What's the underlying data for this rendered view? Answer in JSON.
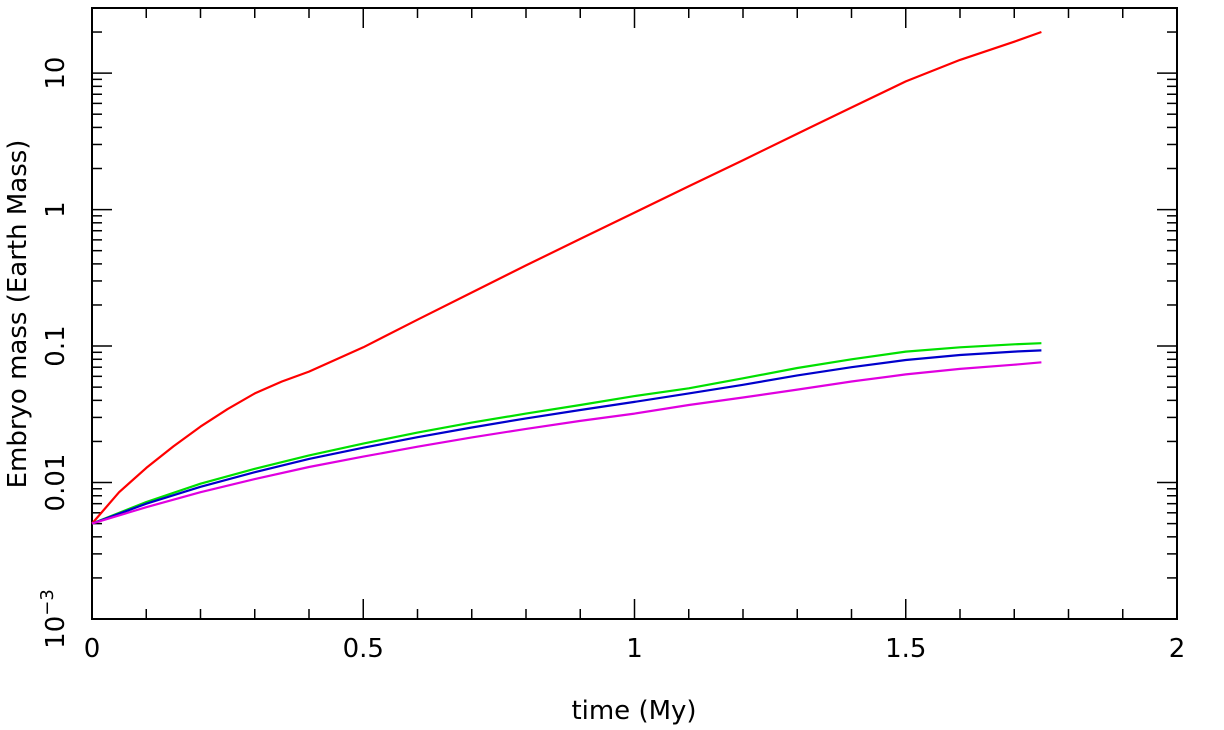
{
  "chart_data": {
    "type": "line",
    "title": "",
    "xlabel": "time (My)",
    "ylabel": "Embryo mass (Earth Mass)",
    "xlim": [
      0,
      2
    ],
    "ylim": [
      0.001,
      30
    ],
    "yscale": "log",
    "grid": false,
    "legend": "none",
    "x_ticks": [
      {
        "value": 0,
        "label": "0"
      },
      {
        "value": 0.5,
        "label": "0.5"
      },
      {
        "value": 1,
        "label": "1"
      },
      {
        "value": 1.5,
        "label": "1.5"
      },
      {
        "value": 2,
        "label": "2"
      }
    ],
    "y_ticks": [
      {
        "value": 0.001,
        "base": "10",
        "exp": "−3"
      },
      {
        "value": 0.01,
        "label": "0.01"
      },
      {
        "value": 0.1,
        "label": "0.1"
      },
      {
        "value": 1,
        "label": "1"
      },
      {
        "value": 10,
        "label": "10"
      }
    ],
    "series": [
      {
        "color": "#ff0000",
        "x": [
          0,
          0.05,
          0.1,
          0.15,
          0.2,
          0.25,
          0.3,
          0.35,
          0.4,
          0.5,
          0.6,
          0.7,
          0.8,
          0.9,
          1.0,
          1.1,
          1.2,
          1.3,
          1.4,
          1.5,
          1.6,
          1.7,
          1.75
        ],
        "y": [
          0.005,
          0.0085,
          0.0128,
          0.0184,
          0.0257,
          0.0345,
          0.045,
          0.055,
          0.065,
          0.098,
          0.156,
          0.247,
          0.39,
          0.61,
          0.95,
          1.48,
          2.3,
          3.6,
          5.6,
          8.7,
          12.5,
          17.0,
          20.0
        ]
      },
      {
        "color": "#00e000",
        "x": [
          0,
          0.1,
          0.2,
          0.3,
          0.4,
          0.5,
          0.6,
          0.7,
          0.8,
          0.9,
          1.0,
          1.1,
          1.2,
          1.3,
          1.4,
          1.5,
          1.6,
          1.7,
          1.75
        ],
        "y": [
          0.005,
          0.0072,
          0.0098,
          0.0126,
          0.0158,
          0.0193,
          0.0232,
          0.0275,
          0.032,
          0.037,
          0.043,
          0.049,
          0.058,
          0.069,
          0.08,
          0.091,
          0.098,
          0.103,
          0.105
        ]
      },
      {
        "color": "#0000cc",
        "x": [
          0,
          0.1,
          0.2,
          0.3,
          0.4,
          0.5,
          0.6,
          0.7,
          0.8,
          0.9,
          1.0,
          1.1,
          1.2,
          1.3,
          1.4,
          1.5,
          1.6,
          1.7,
          1.75
        ],
        "y": [
          0.005,
          0.007,
          0.0093,
          0.0119,
          0.0149,
          0.018,
          0.0215,
          0.0253,
          0.0295,
          0.034,
          0.039,
          0.045,
          0.052,
          0.061,
          0.07,
          0.079,
          0.086,
          0.091,
          0.093
        ]
      },
      {
        "color": "#e000e0",
        "x": [
          0,
          0.1,
          0.2,
          0.3,
          0.4,
          0.5,
          0.6,
          0.7,
          0.8,
          0.9,
          1.0,
          1.1,
          1.2,
          1.3,
          1.4,
          1.5,
          1.6,
          1.7,
          1.75
        ],
        "y": [
          0.005,
          0.0066,
          0.0085,
          0.0106,
          0.013,
          0.0155,
          0.0183,
          0.0214,
          0.0247,
          0.0283,
          0.032,
          0.037,
          0.042,
          0.048,
          0.055,
          0.062,
          0.068,
          0.073,
          0.076
        ]
      }
    ]
  }
}
